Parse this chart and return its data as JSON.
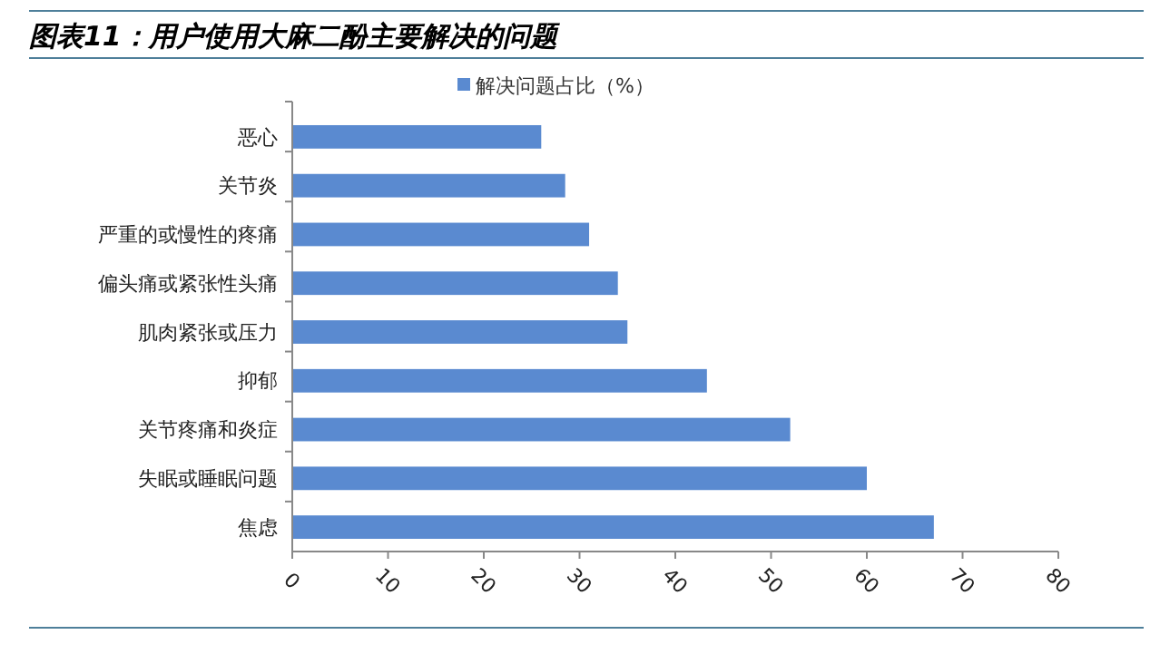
{
  "chart_data": {
    "type": "bar",
    "orientation": "horizontal",
    "title": "图表11：用户使用大麻二酚主要解决的问题",
    "categories": [
      "恶心",
      "关节炎",
      "严重的或慢性的疼痛",
      "偏头痛或紧张性头痛",
      "肌肉紧张或压力",
      "抑郁",
      "关节疼痛和炎症",
      "失眠或睡眠问题",
      "焦虑"
    ],
    "series": [
      {
        "name": "解决问题占比（%）",
        "color": "#5a8ad0",
        "values": [
          26,
          28.5,
          31,
          34,
          35,
          43.3,
          52,
          60,
          67
        ]
      }
    ],
    "xlim": [
      0,
      80
    ],
    "xticks": [
      0,
      10,
      20,
      30,
      40,
      50,
      60,
      70,
      80
    ],
    "legend": "top",
    "grid": false
  }
}
